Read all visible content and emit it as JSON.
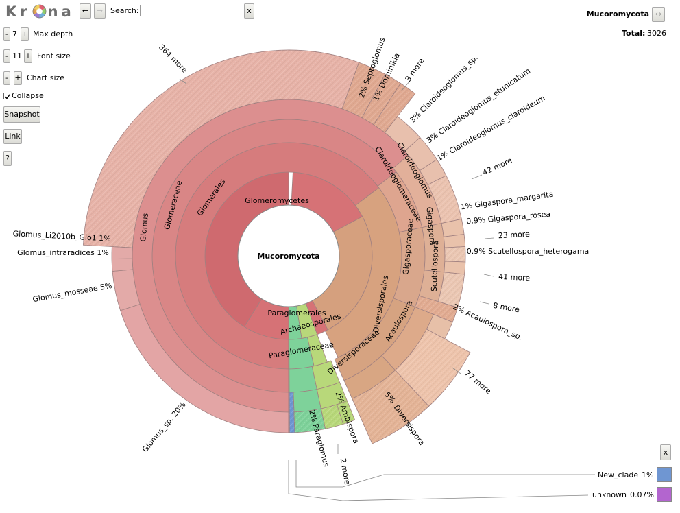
{
  "logo": {
    "text_left": "Kr",
    "text_right": "na"
  },
  "nav": {
    "back": "←",
    "forward": "→"
  },
  "search": {
    "label": "Search:",
    "value": "",
    "placeholder": "",
    "clear": "x"
  },
  "controls": {
    "minus": "-",
    "plus": "+",
    "max_depth": {
      "value": "7",
      "label": "Max depth"
    },
    "font_size": {
      "value": "11",
      "label": "Font size"
    },
    "chart_size": {
      "label": "Chart size"
    },
    "collapse": {
      "label": "Collapse",
      "checked": true
    },
    "snapshot": "Snapshot",
    "link": "Link",
    "help": "?"
  },
  "details": {
    "name": "Mucoromycota",
    "expand": "↔",
    "total_label": "Total:",
    "total_value": "3026"
  },
  "chart": {
    "center": "Mucoromycota"
  },
  "key_panel": {
    "close": "x",
    "items": [
      {
        "name": "New_clade",
        "pct": "1%",
        "color": "#6f96d2"
      },
      {
        "name": "unknown",
        "pct": "0.07%",
        "color": "#b365cf"
      }
    ]
  },
  "colors": {
    "accent_red": "#d7737a",
    "accent_orange": "#d5a07e",
    "accent_green": "#7ed29a"
  },
  "chart_data": {
    "type": "sunburst",
    "root": "Mucoromycota",
    "total": 3026,
    "levels": [
      {
        "level": "class",
        "nodes": [
          "Glomeromycetes",
          "Paraglomerales",
          "Archaeosporales"
        ]
      },
      {
        "level": "order",
        "nodes": [
          "Glomerales",
          "Diversisporales",
          "Paraglomeraceae"
        ]
      },
      {
        "level": "family",
        "nodes": [
          "Glomeraceae",
          "Claroideoglomeraceae",
          "Gigasporaceae",
          "Diversisporaceae"
        ]
      },
      {
        "level": "genus",
        "nodes": [
          "Glomus",
          "Claroideoglomus",
          "Gigaspora",
          "Scutellospora",
          "Acaulospora",
          "Diversispora",
          "Paraglomus",
          "Ambispora",
          "Septoglomus",
          "Dominikia"
        ]
      }
    ],
    "leaves": [
      {
        "name": "Glomus_sp.",
        "pct": "20%"
      },
      {
        "name": "Glomus_mosseae",
        "pct": "5%"
      },
      {
        "name": "Glomus_intraradices",
        "pct": "1%"
      },
      {
        "name": "Glomus_Li2010b_Glo1",
        "pct": "1%"
      },
      {
        "name": "364 more"
      },
      {
        "name": "Septoglomus",
        "pct": "2%"
      },
      {
        "name": "Dominikia",
        "pct": "1%"
      },
      {
        "name": "3 more"
      },
      {
        "name": "Claroideoglomus_sp.",
        "pct": "3%"
      },
      {
        "name": "Claroideoglomus_etunicatum",
        "pct": "3%"
      },
      {
        "name": "Claroideoglomus_claroideum",
        "pct": "1%"
      },
      {
        "name": "42 more"
      },
      {
        "name": "Gigaspora_margarita",
        "pct": "1%"
      },
      {
        "name": "Gigaspora_rosea",
        "pct": "0.9%"
      },
      {
        "name": "23 more"
      },
      {
        "name": "Scutellospora_heterogama",
        "pct": "0.9%"
      },
      {
        "name": "41 more"
      },
      {
        "name": "8 more"
      },
      {
        "name": "Acaulospora_sp.",
        "pct": "2%"
      },
      {
        "name": "77 more"
      },
      {
        "name": "Diversispora",
        "pct": "5%"
      },
      {
        "name": "Ambispora",
        "pct": "2%"
      },
      {
        "name": "Paraglomus",
        "pct": "2%"
      },
      {
        "name": "2 more"
      },
      {
        "name": "New_clade",
        "pct": "1%"
      },
      {
        "name": "unknown",
        "pct": "0.07%"
      }
    ]
  }
}
